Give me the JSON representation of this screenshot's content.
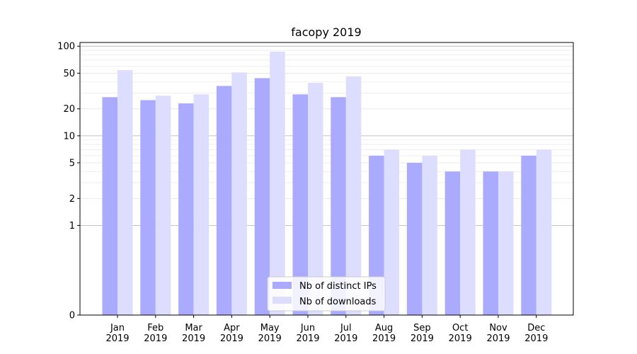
{
  "chart_data": {
    "type": "bar",
    "title": "facopy 2019",
    "xlabel": "",
    "ylabel": "",
    "yscale": "symlog",
    "y_ticks": [
      0,
      1,
      2,
      5,
      10,
      20,
      50,
      100
    ],
    "ylim": [
      0,
      110
    ],
    "grid": "horizontal",
    "legend_position": "bottom-center",
    "categories": [
      [
        "Jan",
        "2019"
      ],
      [
        "Feb",
        "2019"
      ],
      [
        "Mar",
        "2019"
      ],
      [
        "Apr",
        "2019"
      ],
      [
        "May",
        "2019"
      ],
      [
        "Jun",
        "2019"
      ],
      [
        "Jul",
        "2019"
      ],
      [
        "Aug",
        "2019"
      ],
      [
        "Sep",
        "2019"
      ],
      [
        "Oct",
        "2019"
      ],
      [
        "Nov",
        "2019"
      ],
      [
        "Dec",
        "2019"
      ]
    ],
    "series": [
      {
        "name": "Nb of distinct IPs",
        "color": "#aaaaff",
        "values": [
          27,
          25,
          23,
          36,
          44,
          29,
          27,
          6,
          5,
          4,
          4,
          6
        ]
      },
      {
        "name": "Nb of downloads",
        "color": "#ddddff",
        "values": [
          54,
          28,
          29,
          51,
          87,
          39,
          46,
          7,
          6,
          7,
          4,
          7
        ]
      }
    ]
  }
}
